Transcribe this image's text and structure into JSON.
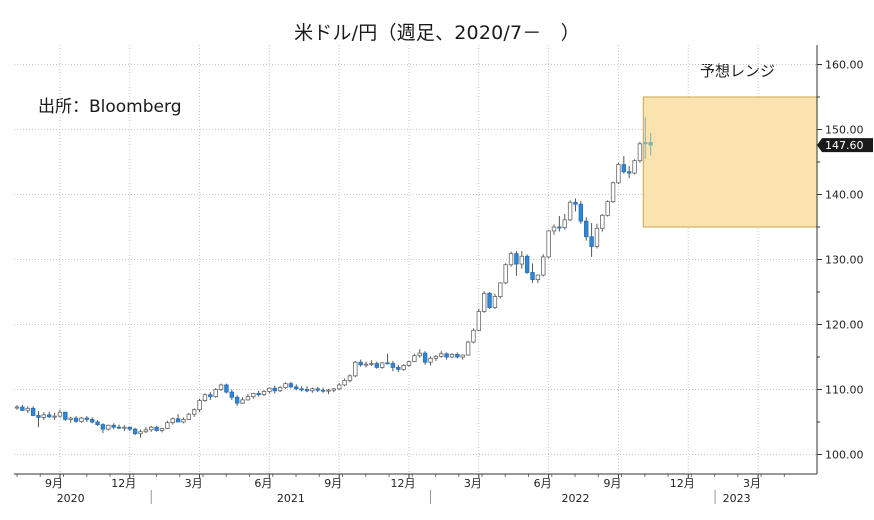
{
  "title": "米ドル/円（週足、2020/7－　）",
  "source": "出所：Bloomberg",
  "forecast_label": "予想レンジ",
  "colors": {
    "up": "#ffffff",
    "down": "#2e86d6",
    "wick": "#555555",
    "forecast_fill": "#fbe3b0",
    "forecast_border": "#c9a44a",
    "grid": "#c8c8c8",
    "forecast_candle": "#7fb3b0"
  },
  "chart_data": {
    "type": "candlestick",
    "title": "米ドル/円（週足、2020/7－　）",
    "yaxis_side": "right",
    "ylim": [
      97,
      163
    ],
    "yticks": [
      "100.00",
      "110.00",
      "120.00",
      "130.00",
      "140.00",
      "150.00",
      "160.00"
    ],
    "last_value_label": "147.60",
    "last_value": 147.6,
    "month_ticks": [
      {
        "label": "9月",
        "index": 8
      },
      {
        "label": "12月",
        "index": 21
      },
      {
        "label": "3月",
        "index": 34
      },
      {
        "label": "6月",
        "index": 47
      },
      {
        "label": "9月",
        "index": 60
      },
      {
        "label": "12月",
        "index": 73
      },
      {
        "label": "3月",
        "index": 86
      },
      {
        "label": "6月",
        "index": 99
      },
      {
        "label": "9月",
        "index": 112
      },
      {
        "label": "12月",
        "index": 125
      },
      {
        "label": "3月",
        "index": 138
      }
    ],
    "year_labels": [
      {
        "label": "2020",
        "index": 10
      },
      {
        "label": "2021",
        "index": 51
      },
      {
        "label": "2022",
        "index": 104
      },
      {
        "label": "2023",
        "index": 134
      }
    ],
    "year_separators": [
      25,
      77,
      130
    ],
    "forecast_range": {
      "x_from": 117,
      "x_to": 143,
      "low": 135,
      "high": 155
    },
    "weeks": [
      [
        107.2,
        107.6,
        106.9,
        107.3
      ],
      [
        107.3,
        107.6,
        106.7,
        106.8
      ],
      [
        106.8,
        107.4,
        106.4,
        107.1
      ],
      [
        107.1,
        107.4,
        105.9,
        106.0
      ],
      [
        106.0,
        106.7,
        104.2,
        105.7
      ],
      [
        105.7,
        106.5,
        105.3,
        106.1
      ],
      [
        106.1,
        106.6,
        105.6,
        105.8
      ],
      [
        105.8,
        106.4,
        105.3,
        105.9
      ],
      [
        105.9,
        106.9,
        105.7,
        106.5
      ],
      [
        106.5,
        106.6,
        105.2,
        105.4
      ],
      [
        105.4,
        105.8,
        104.9,
        105.6
      ],
      [
        105.6,
        105.9,
        104.9,
        105.1
      ],
      [
        105.1,
        105.8,
        104.9,
        105.6
      ],
      [
        105.6,
        105.9,
        105.0,
        105.4
      ],
      [
        105.4,
        105.7,
        104.8,
        105.0
      ],
      [
        105.0,
        105.3,
        104.4,
        104.6
      ],
      [
        104.6,
        104.8,
        103.3,
        103.9
      ],
      [
        103.9,
        104.6,
        103.7,
        104.5
      ],
      [
        104.5,
        104.8,
        103.9,
        104.2
      ],
      [
        104.2,
        104.6,
        103.9,
        104.1
      ],
      [
        104.1,
        104.5,
        103.6,
        104.2
      ],
      [
        104.2,
        104.3,
        103.6,
        103.9
      ],
      [
        103.9,
        104.1,
        103.0,
        103.2
      ],
      [
        103.2,
        103.8,
        102.6,
        103.5
      ],
      [
        103.5,
        104.2,
        103.3,
        103.8
      ],
      [
        103.8,
        104.4,
        103.5,
        104.2
      ],
      [
        104.2,
        104.4,
        103.5,
        103.7
      ],
      [
        103.7,
        104.1,
        103.4,
        104.0
      ],
      [
        104.0,
        105.2,
        103.9,
        104.9
      ],
      [
        104.9,
        105.7,
        104.6,
        105.5
      ],
      [
        105.5,
        106.2,
        105.2,
        105.0
      ],
      [
        105.0,
        105.7,
        104.8,
        105.4
      ],
      [
        105.4,
        106.4,
        105.3,
        106.2
      ],
      [
        106.2,
        107.1,
        105.8,
        106.9
      ],
      [
        106.9,
        108.6,
        106.5,
        108.3
      ],
      [
        108.3,
        109.4,
        108.1,
        109.2
      ],
      [
        109.2,
        109.6,
        108.4,
        108.9
      ],
      [
        108.9,
        110.2,
        108.7,
        110.0
      ],
      [
        110.0,
        110.9,
        109.8,
        110.7
      ],
      [
        110.7,
        110.9,
        109.4,
        109.6
      ],
      [
        109.6,
        110.0,
        108.4,
        108.8
      ],
      [
        108.8,
        109.1,
        107.5,
        107.9
      ],
      [
        107.9,
        108.8,
        107.8,
        108.4
      ],
      [
        108.4,
        109.3,
        108.3,
        108.9
      ],
      [
        108.9,
        109.5,
        108.6,
        109.4
      ],
      [
        109.4,
        109.8,
        108.9,
        109.2
      ],
      [
        109.2,
        109.9,
        109.0,
        109.7
      ],
      [
        109.7,
        110.3,
        109.4,
        110.2
      ],
      [
        110.2,
        110.6,
        109.4,
        109.8
      ],
      [
        109.8,
        110.5,
        109.6,
        110.3
      ],
      [
        110.3,
        111.1,
        110.1,
        110.9
      ],
      [
        110.9,
        111.2,
        110.2,
        110.4
      ],
      [
        110.4,
        110.8,
        109.9,
        110.1
      ],
      [
        110.1,
        110.5,
        109.7,
        110.0
      ],
      [
        110.0,
        110.5,
        109.6,
        109.8
      ],
      [
        109.8,
        110.3,
        109.5,
        110.1
      ],
      [
        110.1,
        110.4,
        109.6,
        109.9
      ],
      [
        109.9,
        110.3,
        109.5,
        109.8
      ],
      [
        109.8,
        110.1,
        109.3,
        109.9
      ],
      [
        109.9,
        110.2,
        109.6,
        110.1
      ],
      [
        110.1,
        111.0,
        109.9,
        110.7
      ],
      [
        110.7,
        111.7,
        110.5,
        111.4
      ],
      [
        111.4,
        112.3,
        111.1,
        112.1
      ],
      [
        112.1,
        114.4,
        111.9,
        114.2
      ],
      [
        114.2,
        114.6,
        113.5,
        113.8
      ],
      [
        113.8,
        114.3,
        113.4,
        113.9
      ],
      [
        113.9,
        114.5,
        113.6,
        114.0
      ],
      [
        114.0,
        114.3,
        113.2,
        113.4
      ],
      [
        113.4,
        114.2,
        113.2,
        114.1
      ],
      [
        114.1,
        115.5,
        113.9,
        114.0
      ],
      [
        114.0,
        114.4,
        112.8,
        113.4
      ],
      [
        113.4,
        113.8,
        112.7,
        113.1
      ],
      [
        113.1,
        113.9,
        112.9,
        113.7
      ],
      [
        113.7,
        114.4,
        113.5,
        114.3
      ],
      [
        114.3,
        115.5,
        114.2,
        115.2
      ],
      [
        115.2,
        116.2,
        114.9,
        115.6
      ],
      [
        115.6,
        115.9,
        113.8,
        114.2
      ],
      [
        114.2,
        115.1,
        113.7,
        114.8
      ],
      [
        114.8,
        115.3,
        114.4,
        115.1
      ],
      [
        115.1,
        115.9,
        114.9,
        115.5
      ],
      [
        115.5,
        115.7,
        114.6,
        115.0
      ],
      [
        115.0,
        115.6,
        114.8,
        115.4
      ],
      [
        115.4,
        115.7,
        114.8,
        115.0
      ],
      [
        115.0,
        115.4,
        114.6,
        115.3
      ],
      [
        115.3,
        117.5,
        115.2,
        117.3
      ],
      [
        117.3,
        119.4,
        117.1,
        119.1
      ],
      [
        119.1,
        122.4,
        119.0,
        122.0
      ],
      [
        122.0,
        125.1,
        121.8,
        124.8
      ],
      [
        124.8,
        125.0,
        122.4,
        122.6
      ],
      [
        122.6,
        124.7,
        122.4,
        124.3
      ],
      [
        124.3,
        126.5,
        124.0,
        126.4
      ],
      [
        126.4,
        129.4,
        126.2,
        129.2
      ],
      [
        129.2,
        131.2,
        128.9,
        130.9
      ],
      [
        130.9,
        131.3,
        127.5,
        129.3
      ],
      [
        129.3,
        131.3,
        128.6,
        130.5
      ],
      [
        130.5,
        130.8,
        127.8,
        128.0
      ],
      [
        128.0,
        129.4,
        126.4,
        126.9
      ],
      [
        126.9,
        127.7,
        126.4,
        127.6
      ],
      [
        127.6,
        130.8,
        127.4,
        130.4
      ],
      [
        130.4,
        134.5,
        130.2,
        134.4
      ],
      [
        134.4,
        135.4,
        133.8,
        135.0
      ],
      [
        135.0,
        136.7,
        134.3,
        134.9
      ],
      [
        134.9,
        137.0,
        134.6,
        136.1
      ],
      [
        136.1,
        139.1,
        135.9,
        138.8
      ],
      [
        138.8,
        139.4,
        137.4,
        138.5
      ],
      [
        138.5,
        139.0,
        135.5,
        135.9
      ],
      [
        135.9,
        136.5,
        132.9,
        133.5
      ],
      [
        133.5,
        135.6,
        130.4,
        132.0
      ],
      [
        132.0,
        135.5,
        131.7,
        134.8
      ],
      [
        134.8,
        137.0,
        134.3,
        136.8
      ],
      [
        136.8,
        139.1,
        136.6,
        138.9
      ],
      [
        138.9,
        142.0,
        138.7,
        141.8
      ],
      [
        141.8,
        144.9,
        141.6,
        144.6
      ],
      [
        144.6,
        145.9,
        143.2,
        143.5
      ],
      [
        143.5,
        144.4,
        142.5,
        143.3
      ],
      [
        143.3,
        145.4,
        143.1,
        145.2
      ],
      [
        145.2,
        148.1,
        144.9,
        147.8
      ],
      [
        147.8,
        151.9,
        145.5,
        148.0
      ],
      [
        148.0,
        149.5,
        146.0,
        147.6
      ]
    ]
  }
}
